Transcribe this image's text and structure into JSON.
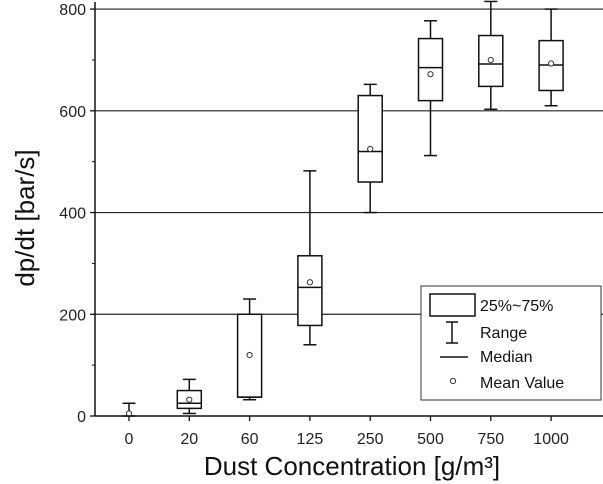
{
  "chart_data": {
    "type": "box",
    "xlabel": "Dust Concentration [g/m³]",
    "ylabel": "dp/dt [bar/s]",
    "ylim": [
      0,
      810
    ],
    "yticks": [
      0,
      200,
      400,
      600,
      800
    ],
    "grid": "horizontal",
    "legend_position": "bottom-right",
    "legend": {
      "box": "25%~75%",
      "range": "Range",
      "median": "Median",
      "mean": "Mean Value"
    },
    "categories": [
      "0",
      "20",
      "60",
      "125",
      "250",
      "500",
      "750",
      "1000"
    ],
    "boxes": [
      {
        "category": "0",
        "min": 0,
        "q1": 0,
        "median": 0,
        "q3": 0,
        "max": 25,
        "mean": 5
      },
      {
        "category": "20",
        "min": 5,
        "q1": 15,
        "median": 25,
        "q3": 50,
        "max": 72,
        "mean": 32
      },
      {
        "category": "60",
        "min": 32,
        "q1": 37,
        "median": 37,
        "q3": 200,
        "max": 230,
        "mean": 120
      },
      {
        "category": "125",
        "min": 140,
        "q1": 178,
        "median": 253,
        "q3": 315,
        "max": 482,
        "mean": 263
      },
      {
        "category": "250",
        "min": 400,
        "q1": 460,
        "median": 520,
        "q3": 630,
        "max": 652,
        "mean": 525
      },
      {
        "category": "500",
        "min": 512,
        "q1": 620,
        "median": 685,
        "q3": 742,
        "max": 777,
        "mean": 672
      },
      {
        "category": "750",
        "min": 603,
        "q1": 648,
        "median": 692,
        "q3": 748,
        "max": 815,
        "mean": 700
      },
      {
        "category": "1000",
        "min": 610,
        "q1": 640,
        "median": 690,
        "q3": 738,
        "max": 800,
        "mean": 693
      }
    ]
  }
}
